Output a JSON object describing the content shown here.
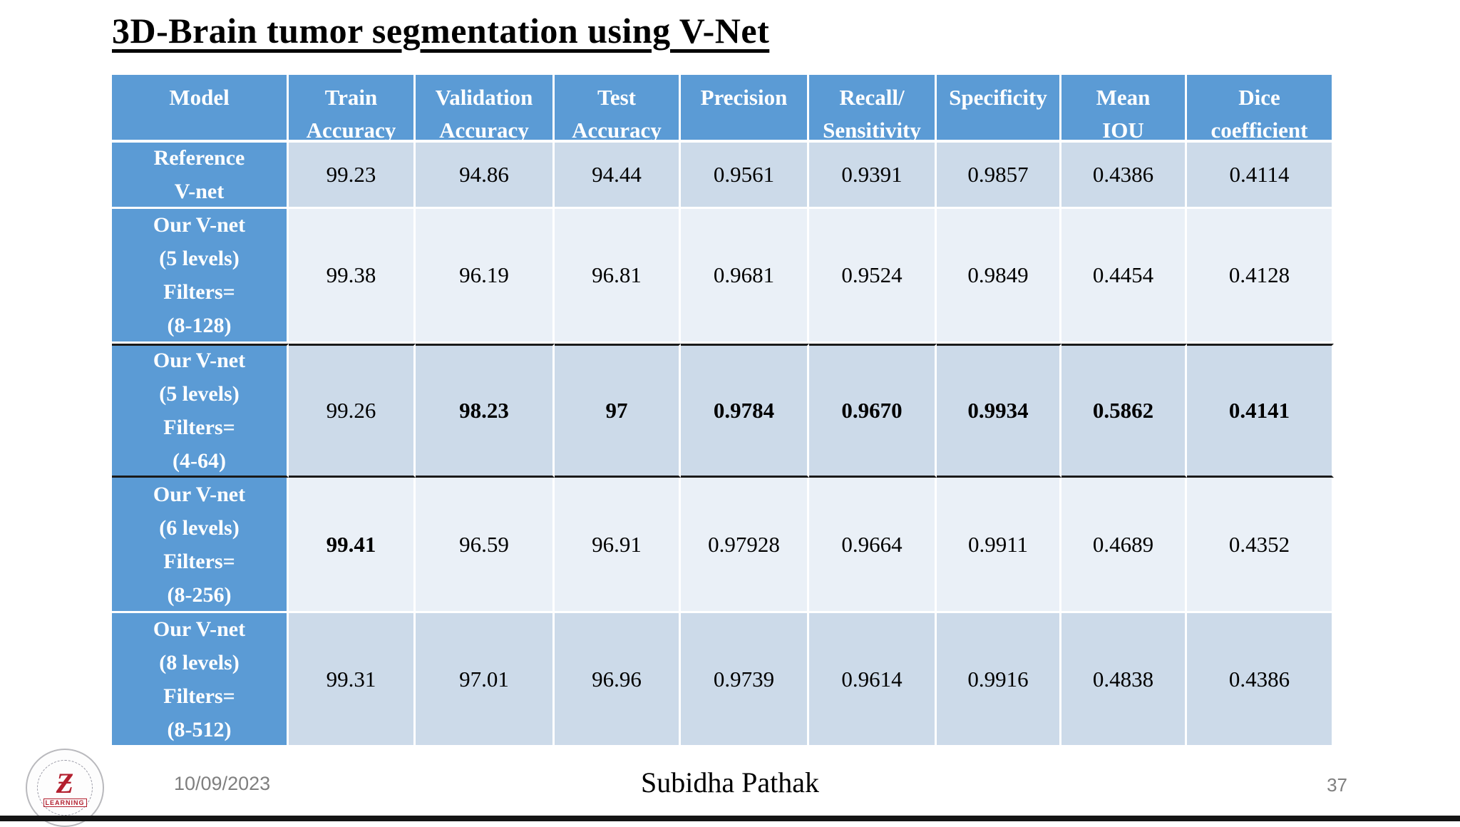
{
  "slide": {
    "title": "3D-Brain tumor segmentation using V-Net",
    "footer": {
      "date": "10/09/2023",
      "author": "Subidha Pathak",
      "page_number": "37"
    },
    "logo": {
      "glyph": "Ƶ",
      "caption": "LEARNING"
    }
  },
  "theme": {
    "accent_blue": "#5B9BD5",
    "band_dark": "#CCDAE9",
    "band_light": "#EAF0F7",
    "highlight_border": "#1a1a1a"
  },
  "table": {
    "headers": [
      {
        "line1": "Model",
        "line2": ""
      },
      {
        "line1": "Train",
        "line2": "Accuracy"
      },
      {
        "line1": "Validation",
        "line2": "Accuracy"
      },
      {
        "line1": "Test",
        "line2": "Accuracy"
      },
      {
        "line1": "Precision",
        "line2": ""
      },
      {
        "line1": "Recall/",
        "line2": "Sensitivity"
      },
      {
        "line1": "Specificity",
        "line2": ""
      },
      {
        "line1": "Mean",
        "line2": "IOU"
      },
      {
        "line1": "Dice",
        "line2": "coefficient"
      }
    ],
    "rows": [
      {
        "model_lines": [
          "Reference",
          "V-net"
        ],
        "values": [
          "99.23",
          "94.86",
          "94.44",
          "0.9561",
          "0.9391",
          "0.9857",
          "0.4386",
          "0.4114"
        ]
      },
      {
        "model_lines": [
          "Our V-net",
          "(5 levels)",
          "Filters=",
          "(8-128)"
        ],
        "values": [
          "99.38",
          "96.19",
          "96.81",
          "0.9681",
          "0.9524",
          "0.9849",
          "0.4454",
          "0.4128"
        ]
      },
      {
        "model_lines": [
          "Our V-net",
          "(5 levels)",
          "Filters=",
          "(4-64)"
        ],
        "values": [
          "99.26",
          "98.23",
          "97",
          "0.9784",
          "0.9670",
          "0.9934",
          "0.5862",
          "0.4141"
        ]
      },
      {
        "model_lines": [
          "Our V-net",
          "(6 levels)",
          "Filters=",
          "(8-256)"
        ],
        "values": [
          "99.41",
          "96.59",
          "96.91",
          "0.97928",
          "0.9664",
          "0.9911",
          "0.4689",
          "0.4352"
        ]
      },
      {
        "model_lines": [
          "Our V-net",
          "(8 levels)",
          "Filters=",
          "(8-512)"
        ],
        "values": [
          "99.31",
          "97.01",
          "96.96",
          "0.9739",
          "0.9614",
          "0.9916",
          "0.4838",
          "0.4386"
        ]
      }
    ]
  }
}
